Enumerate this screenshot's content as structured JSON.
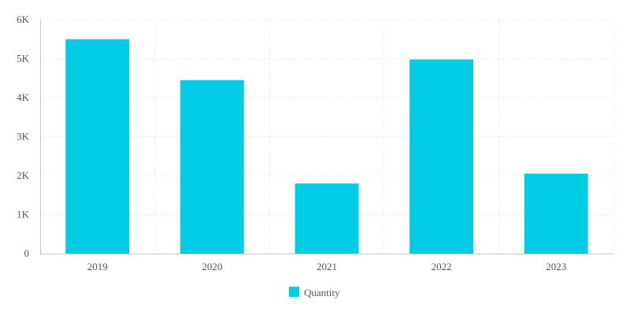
{
  "chart_data": {
    "type": "bar",
    "title": "",
    "xlabel": "",
    "ylabel": "",
    "categories": [
      "2019",
      "2020",
      "2021",
      "2022",
      "2023"
    ],
    "series": [
      {
        "name": "Quantity",
        "color": "#00CCE6",
        "values": [
          5500,
          4450,
          1800,
          4980,
          2050
        ]
      }
    ],
    "ylim": [
      0,
      6000
    ],
    "yticks": [
      {
        "value": 0,
        "label": "0"
      },
      {
        "value": 1000,
        "label": "1K"
      },
      {
        "value": 2000,
        "label": "2K"
      },
      {
        "value": 3000,
        "label": "3K"
      },
      {
        "value": 4000,
        "label": "4K"
      },
      {
        "value": 5000,
        "label": "5K"
      },
      {
        "value": 6000,
        "label": "6K"
      }
    ],
    "grid": true,
    "legend_position": "bottom"
  }
}
